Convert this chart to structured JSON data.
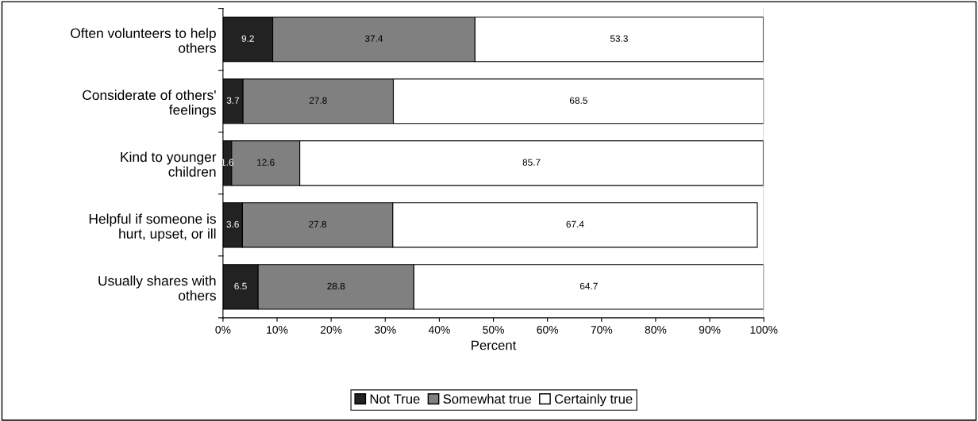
{
  "chart_data": {
    "type": "bar",
    "orientation": "horizontal",
    "stacked": true,
    "xlabel": "Percent",
    "categories": [
      "Often volunteers to help\nothers",
      "Considerate of others'\nfeelings",
      "Kind to younger\nchildren",
      "Helpful if someone is\nhurt, upset, or ill",
      "Usually shares with\nothers"
    ],
    "series": [
      {
        "name": "Not True",
        "color": "#222222",
        "values": [
          9.2,
          3.7,
          1.6,
          3.6,
          6.5
        ]
      },
      {
        "name": "Somewhat true",
        "color": "#808080",
        "values": [
          37.4,
          27.8,
          12.6,
          27.8,
          28.8
        ]
      },
      {
        "name": "Certainly true",
        "color": "#ffffff",
        "values": [
          53.3,
          68.5,
          85.7,
          67.4,
          64.7
        ]
      }
    ],
    "xlim": [
      0,
      100
    ],
    "xticks": [
      {
        "value": 0,
        "label": "0%"
      },
      {
        "value": 10,
        "label": "10%"
      },
      {
        "value": 20,
        "label": "20%"
      },
      {
        "value": 30,
        "label": "30%"
      },
      {
        "value": 40,
        "label": "40%"
      },
      {
        "value": 50,
        "label": "50%"
      },
      {
        "value": 60,
        "label": "60%"
      },
      {
        "value": 70,
        "label": "70%"
      },
      {
        "value": 80,
        "label": "80%"
      },
      {
        "value": 90,
        "label": "90%"
      },
      {
        "value": 100,
        "label": "100%"
      }
    ],
    "data_labels": true,
    "grid": false,
    "legend": "bottom"
  }
}
